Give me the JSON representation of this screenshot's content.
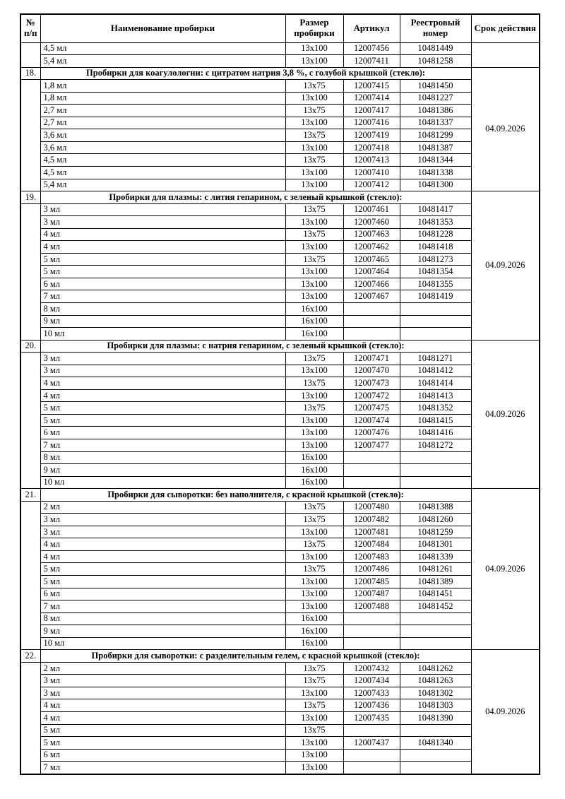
{
  "page": {
    "background": "#ffffff",
    "border_color": "#000000",
    "text_color": "#000000"
  },
  "table": {
    "columns": {
      "number": "№ п/п",
      "name": "Наименование пробирки",
      "size": "Размер пробирки",
      "article": "Артикул",
      "registry": "Реестровый номер",
      "validity": "Срок действия"
    },
    "carryover": {
      "number": "",
      "validity": "",
      "rows": [
        {
          "name": "4,5 мл",
          "size": "13x100",
          "article": "12007456",
          "registry": "10481449"
        },
        {
          "name": "5,4 мл",
          "size": "13x100",
          "article": "12007411",
          "registry": "10481258"
        }
      ]
    },
    "sections": [
      {
        "number": "18.",
        "title": "Пробирки для коагулологии: с цитратом натрия 3,8 %, с голубой крышкой (стекло):",
        "validity": "04.09.2026",
        "rows": [
          {
            "name": "1,8 мл",
            "size": "13x75",
            "article": "12007415",
            "registry": "10481450"
          },
          {
            "name": "1,8 мл",
            "size": "13x100",
            "article": "12007414",
            "registry": "10481227"
          },
          {
            "name": "2,7 мл",
            "size": "13x75",
            "article": "12007417",
            "registry": "10481386"
          },
          {
            "name": "2,7 мл",
            "size": "13x100",
            "article": "12007416",
            "registry": "10481337"
          },
          {
            "name": "3,6 мл",
            "size": "13x75",
            "article": "12007419",
            "registry": "10481299"
          },
          {
            "name": "3,6 мл",
            "size": "13x100",
            "article": "12007418",
            "registry": "10481387"
          },
          {
            "name": "4,5 мл",
            "size": "13x75",
            "article": "12007413",
            "registry": "10481344"
          },
          {
            "name": "4,5 мл",
            "size": "13x100",
            "article": "12007410",
            "registry": "10481338"
          },
          {
            "name": "5,4 мл",
            "size": "13x100",
            "article": "12007412",
            "registry": "10481300"
          }
        ]
      },
      {
        "number": "19.",
        "title": "Пробирки для плазмы: с лития гепарином, с зеленый крышкой (стекло):",
        "validity": "04.09.2026",
        "rows": [
          {
            "name": "3 мл",
            "size": "13x75",
            "article": "12007461",
            "registry": "10481417"
          },
          {
            "name": "3 мл",
            "size": "13x100",
            "article": "12007460",
            "registry": "10481353"
          },
          {
            "name": "4 мл",
            "size": "13x75",
            "article": "12007463",
            "registry": "10481228"
          },
          {
            "name": "4 мл",
            "size": "13x100",
            "article": "12007462",
            "registry": "10481418"
          },
          {
            "name": "5 мл",
            "size": "13x75",
            "article": "12007465",
            "registry": "10481273"
          },
          {
            "name": "5 мл",
            "size": "13x100",
            "article": "12007464",
            "registry": "10481354"
          },
          {
            "name": "6 мл",
            "size": "13x100",
            "article": "12007466",
            "registry": "10481355"
          },
          {
            "name": "7 мл",
            "size": "13x100",
            "article": "12007467",
            "registry": "10481419"
          },
          {
            "name": "8 мл",
            "size": "16x100",
            "article": "",
            "registry": ""
          },
          {
            "name": "9 мл",
            "size": "16x100",
            "article": "",
            "registry": ""
          },
          {
            "name": "10 мл",
            "size": "16x100",
            "article": "",
            "registry": ""
          }
        ]
      },
      {
        "number": "20.",
        "title": "Пробирки для плазмы: с натрия гепарином, с зеленый крышкой (стекло):",
        "validity": "04.09.2026",
        "rows": [
          {
            "name": "3 мл",
            "size": "13x75",
            "article": "12007471",
            "registry": "10481271"
          },
          {
            "name": "3 мл",
            "size": "13x100",
            "article": "12007470",
            "registry": "10481412"
          },
          {
            "name": "4 мл",
            "size": "13x75",
            "article": "12007473",
            "registry": "10481414"
          },
          {
            "name": "4 мл",
            "size": "13x100",
            "article": "12007472",
            "registry": "10481413"
          },
          {
            "name": "5 мл",
            "size": "13x75",
            "article": "12007475",
            "registry": "10481352"
          },
          {
            "name": "5 мл",
            "size": "13x100",
            "article": "12007474",
            "registry": "10481415"
          },
          {
            "name": "6 мл",
            "size": "13x100",
            "article": "12007476",
            "registry": "10481416"
          },
          {
            "name": "7 мл",
            "size": "13x100",
            "article": "12007477",
            "registry": "10481272"
          },
          {
            "name": "8 мл",
            "size": "16x100",
            "article": "",
            "registry": ""
          },
          {
            "name": "9 мл",
            "size": "16x100",
            "article": "",
            "registry": ""
          },
          {
            "name": "10 мл",
            "size": "16x100",
            "article": "",
            "registry": ""
          }
        ]
      },
      {
        "number": "21.",
        "title": "Пробирки для сыворотки: без наполнителя, с красной крышкой (стекло):",
        "validity": "04.09.2026",
        "rows": [
          {
            "name": "2 мл",
            "size": "13x75",
            "article": "12007480",
            "registry": "10481388"
          },
          {
            "name": "3 мл",
            "size": "13x75",
            "article": "12007482",
            "registry": "10481260"
          },
          {
            "name": "3 мл",
            "size": "13x100",
            "article": "12007481",
            "registry": "10481259"
          },
          {
            "name": "4 мл",
            "size": "13x75",
            "article": "12007484",
            "registry": "10481301"
          },
          {
            "name": "4 мл",
            "size": "13x100",
            "article": "12007483",
            "registry": "10481339"
          },
          {
            "name": "5 мл",
            "size": "13x75",
            "article": "12007486",
            "registry": "10481261"
          },
          {
            "name": "5 мл",
            "size": "13x100",
            "article": "12007485",
            "registry": "10481389"
          },
          {
            "name": "6 мл",
            "size": "13x100",
            "article": "12007487",
            "registry": "10481451"
          },
          {
            "name": "7 мл",
            "size": "13x100",
            "article": "12007488",
            "registry": "10481452"
          },
          {
            "name": "8 мл",
            "size": "16x100",
            "article": "",
            "registry": ""
          },
          {
            "name": "9 мл",
            "size": "16x100",
            "article": "",
            "registry": ""
          },
          {
            "name": "10 мл",
            "size": "16x100",
            "article": "",
            "registry": ""
          }
        ]
      },
      {
        "number": "22.",
        "title": "Пробирки для сыворотки: с разделительным гелем, с красной крышкой (стекло):",
        "validity": "04.09.2026",
        "rows": [
          {
            "name": "2 мл",
            "size": "13x75",
            "article": "12007432",
            "registry": "10481262"
          },
          {
            "name": "3 мл",
            "size": "13x75",
            "article": "12007434",
            "registry": "10481263"
          },
          {
            "name": "3 мл",
            "size": "13x100",
            "article": "12007433",
            "registry": "10481302"
          },
          {
            "name": "4 мл",
            "size": "13x75",
            "article": "12007436",
            "registry": "10481303"
          },
          {
            "name": "4 мл",
            "size": "13x100",
            "article": "12007435",
            "registry": "10481390"
          },
          {
            "name": "5 мл",
            "size": "13x75",
            "article": "",
            "registry": ""
          },
          {
            "name": "5 мл",
            "size": "13x100",
            "article": "12007437",
            "registry": "10481340"
          },
          {
            "name": "6 мл",
            "size": "13x100",
            "article": "",
            "registry": ""
          },
          {
            "name": "7 мл",
            "size": "13x100",
            "article": "",
            "registry": ""
          }
        ]
      }
    ]
  }
}
